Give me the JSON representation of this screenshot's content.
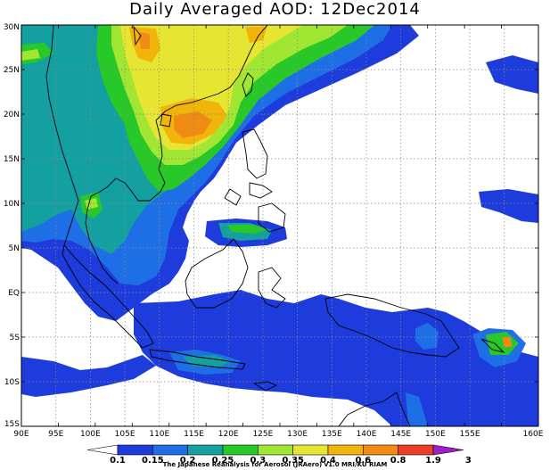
{
  "title": "Daily Averaged AOD: 12Dec2014",
  "credit": "The Japanese Reanalysis for Aerosol (JRAero) v1.0 MRI/KU RIAM",
  "lon_ticks": [
    "90E",
    "95E",
    "100E",
    "105E",
    "110E",
    "115E",
    "120E",
    "125E",
    "130E",
    "135E",
    "140E",
    "145E",
    "150E",
    "155E",
    "160E"
  ],
  "lat_ticks": [
    "30N",
    "25N",
    "20N",
    "15N",
    "10N",
    "5N",
    "EQ",
    "5S",
    "10S",
    "15S"
  ],
  "colorbar": {
    "labels": [
      "0.1",
      "0.15",
      "0.2",
      "0.25",
      "0.3",
      "0.35",
      "0.4",
      "0.6",
      "0.8",
      "1.9",
      "3"
    ],
    "colors": [
      "#ffffff",
      "#1e3cdc",
      "#1e6ee6",
      "#14a0a0",
      "#28c828",
      "#a0e632",
      "#e6e632",
      "#f0b40a",
      "#f08c14",
      "#eb3c28",
      "#a01ec8"
    ]
  },
  "aod_colors": {
    "c1": "#1e3cdc",
    "c2": "#1e6ee6",
    "c3": "#14a0a0",
    "c4": "#28c828",
    "c5": "#a0e632",
    "c6": "#e6e632",
    "c7": "#f0b40a",
    "c8": "#f08c14"
  }
}
